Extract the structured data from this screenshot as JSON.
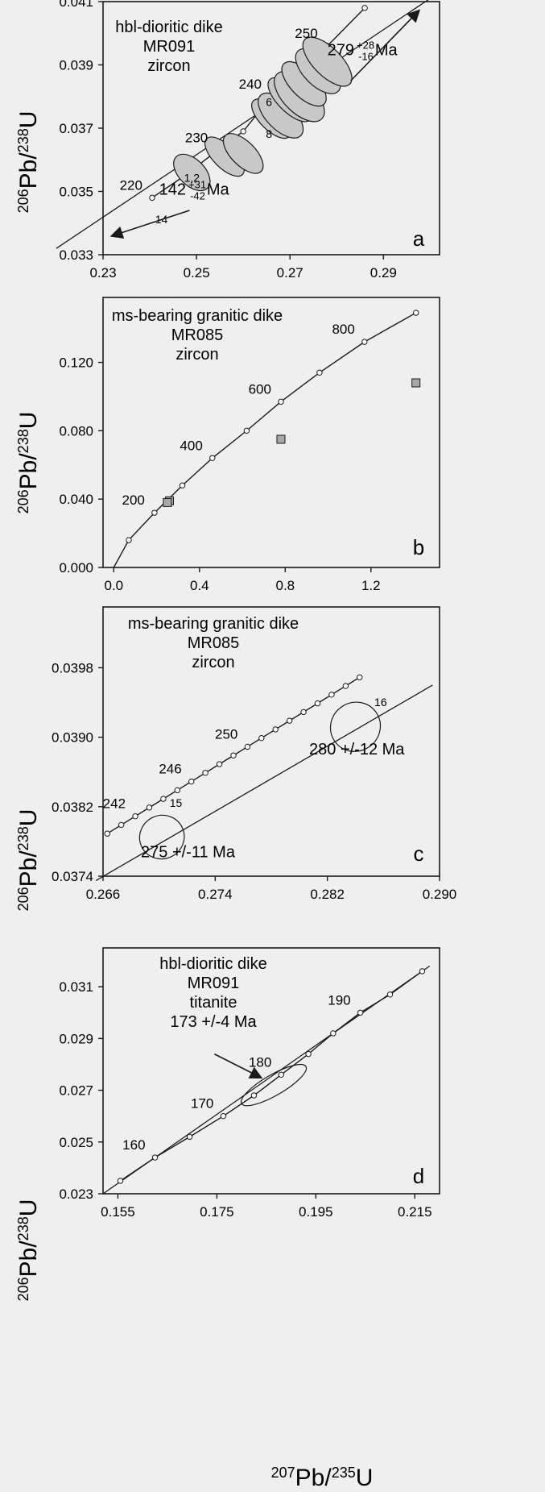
{
  "figure": {
    "x_axis_title": {
      "base": "Pb",
      "num_sup": "207",
      "den_sup": "235",
      "den": "U"
    }
  },
  "chart_data": [
    {
      "panel": "a",
      "type": "scatter",
      "title_lines": [
        "hbl-dioritic dike",
        "MR091",
        "zircon"
      ],
      "ylabel": {
        "base": "Pb",
        "num_sup": "206",
        "den_sup": "238",
        "den": "U"
      },
      "xlim": [
        0.23,
        0.302
      ],
      "ylim": [
        0.033,
        0.041
      ],
      "xticks": [
        0.23,
        0.25,
        0.27,
        0.29
      ],
      "xtick_labels": [
        "0.23",
        "0.25",
        "0.27",
        "0.29"
      ],
      "yticks": [
        0.033,
        0.035,
        0.037,
        0.039,
        0.041
      ],
      "ytick_labels": [
        "0.033",
        "0.035",
        "0.037",
        "0.039",
        "0.041"
      ],
      "concordia_points": [
        [
          0.2405,
          0.0348
        ],
        [
          0.2475,
          0.0355
        ],
        [
          0.2545,
          0.0363
        ],
        [
          0.26,
          0.0369
        ],
        [
          0.266,
          0.038
        ],
        [
          0.272,
          0.0387
        ],
        [
          0.278,
          0.0396
        ],
        [
          0.286,
          0.0408
        ]
      ],
      "concordia_labels": [
        {
          "text": "220",
          "x": 0.2405,
          "y": 0.0348
        },
        {
          "text": "230",
          "x": 0.2545,
          "y": 0.0363
        },
        {
          "text": "240",
          "x": 0.266,
          "y": 0.038
        },
        {
          "text": "250",
          "x": 0.278,
          "y": 0.0396
        }
      ],
      "discordia": [
        [
          0.22,
          0.0332
        ],
        [
          0.3,
          0.0411
        ]
      ],
      "ellipses": [
        {
          "cx": 0.249,
          "cy": 0.0356,
          "rx": 0.0028,
          "ry": 0.0007,
          "angle": -45,
          "fill": "#c8c8c8"
        },
        {
          "cx": 0.256,
          "cy": 0.0361,
          "rx": 0.0024,
          "ry": 0.0008,
          "angle": -45,
          "fill": "#c8c8c8"
        },
        {
          "cx": 0.26,
          "cy": 0.0362,
          "rx": 0.0026,
          "ry": 0.0008,
          "angle": -45,
          "fill": "#c8c8c8"
        },
        {
          "cx": 0.266,
          "cy": 0.0373,
          "rx": 0.0024,
          "ry": 0.0008,
          "angle": -45,
          "fill": "#c8c8c8"
        },
        {
          "cx": 0.268,
          "cy": 0.0374,
          "rx": 0.003,
          "ry": 0.0009,
          "angle": -45,
          "fill": "#c8c8c8"
        },
        {
          "cx": 0.27,
          "cy": 0.0379,
          "rx": 0.0026,
          "ry": 0.0009,
          "angle": -45,
          "fill": "#c8c8c8"
        },
        {
          "cx": 0.272,
          "cy": 0.038,
          "rx": 0.0034,
          "ry": 0.001,
          "angle": -45,
          "fill": "#c8c8c8"
        },
        {
          "cx": 0.273,
          "cy": 0.0384,
          "rx": 0.0028,
          "ry": 0.0009,
          "angle": -45,
          "fill": "#c8c8c8"
        },
        {
          "cx": 0.276,
          "cy": 0.0388,
          "rx": 0.003,
          "ry": 0.0009,
          "angle": -45,
          "fill": "#c8c8c8"
        },
        {
          "cx": 0.278,
          "cy": 0.0391,
          "rx": 0.003,
          "ry": 0.001,
          "angle": -45,
          "fill": "#c8c8c8"
        }
      ],
      "annotations": [
        {
          "text": "6",
          "x": 0.2655,
          "y": 0.0377
        },
        {
          "text": "8",
          "x": 0.2655,
          "y": 0.0367
        },
        {
          "text": "1,2",
          "x": 0.249,
          "y": 0.0353
        },
        {
          "text": "14",
          "x": 0.2425,
          "y": 0.034
        }
      ],
      "age_labels": [
        {
          "value": "279",
          "sup": "+28",
          "sub": "-16",
          "unit": "Ma",
          "x": 0.278,
          "y": 0.0393
        },
        {
          "value": "142",
          "sup": "+31",
          "sub": "-42",
          "unit": "Ma",
          "x": 0.242,
          "y": 0.0349
        }
      ],
      "arrows": [
        [
          [
            0.283,
            0.0385
          ],
          [
            0.2975,
            0.0407
          ]
        ],
        [
          [
            0.2485,
            0.0344
          ],
          [
            0.232,
            0.0336
          ]
        ]
      ],
      "panel_label": "a"
    },
    {
      "panel": "b",
      "type": "scatter",
      "title_lines": [
        "ms-bearing granitic dike",
        "MR085",
        "zircon"
      ],
      "ylabel": {
        "base": "Pb",
        "num_sup": "206",
        "den_sup": "238",
        "den": "U"
      },
      "xlim": [
        -0.05,
        1.52
      ],
      "ylim": [
        0,
        0.158
      ],
      "xticks": [
        0,
        0.4,
        0.8,
        1.2
      ],
      "xtick_labels": [
        "0.0",
        "0.4",
        "0.8",
        "1.2"
      ],
      "yticks": [
        0,
        0.04,
        0.08,
        0.12
      ],
      "ytick_labels": [
        "0.000",
        "0.040",
        "0.080",
        "0.120"
      ],
      "concordia_points": [
        [
          0.07,
          0.016
        ],
        [
          0.19,
          0.032
        ],
        [
          0.32,
          0.048
        ],
        [
          0.46,
          0.064
        ],
        [
          0.62,
          0.08
        ],
        [
          0.78,
          0.097
        ],
        [
          0.96,
          0.114
        ],
        [
          1.17,
          0.132
        ],
        [
          1.41,
          0.149
        ]
      ],
      "concordia_labels": [
        {
          "text": "200",
          "x": 0.19,
          "y": 0.032
        },
        {
          "text": "400",
          "x": 0.46,
          "y": 0.064
        },
        {
          "text": "600",
          "x": 0.78,
          "y": 0.097
        },
        {
          "text": "800",
          "x": 1.17,
          "y": 0.132
        }
      ],
      "squares": [
        [
          0.26,
          0.039
        ],
        [
          0.25,
          0.038
        ],
        [
          0.78,
          0.075
        ],
        [
          1.41,
          0.108
        ]
      ],
      "panel_label": "b"
    },
    {
      "panel": "c",
      "type": "scatter",
      "title_lines": [
        "ms-bearing granitic dike",
        "MR085",
        "zircon"
      ],
      "ylabel": {
        "base": "Pb",
        "num_sup": "206",
        "den_sup": "238",
        "den": "U"
      },
      "xlim": [
        0.266,
        0.29
      ],
      "ylim": [
        0.0374,
        0.0405
      ],
      "xticks": [
        0.266,
        0.274,
        0.282,
        0.29
      ],
      "xtick_labels": [
        "0.266",
        "0.274",
        "0.282",
        "0.290"
      ],
      "yticks": [
        0.0374,
        0.0382,
        0.039,
        0.0398
      ],
      "ytick_labels": [
        "0.0374",
        "0.0382",
        "0.0390",
        "0.0398"
      ],
      "concordia_points": [
        [
          0.2663,
          0.03789
        ],
        [
          0.2673,
          0.03799
        ],
        [
          0.2683,
          0.03809
        ],
        [
          0.2693,
          0.03819
        ],
        [
          0.2703,
          0.03829
        ],
        [
          0.2713,
          0.03839
        ],
        [
          0.2723,
          0.03849
        ],
        [
          0.2733,
          0.03859
        ],
        [
          0.2743,
          0.03869
        ],
        [
          0.2753,
          0.03879
        ],
        [
          0.2763,
          0.03889
        ],
        [
          0.2773,
          0.03899
        ],
        [
          0.2783,
          0.03909
        ],
        [
          0.2793,
          0.03919
        ],
        [
          0.2803,
          0.03929
        ],
        [
          0.2813,
          0.03939
        ],
        [
          0.2823,
          0.03949
        ],
        [
          0.2833,
          0.03959
        ],
        [
          0.2843,
          0.03969
        ]
      ],
      "concordia_labels": [
        {
          "text": "242",
          "x": 0.2683,
          "y": 0.03809
        },
        {
          "text": "246",
          "x": 0.2723,
          "y": 0.03849
        },
        {
          "text": "250",
          "x": 0.2763,
          "y": 0.03889
        }
      ],
      "discordia": [
        [
          0.2655,
          0.03735
        ],
        [
          0.2895,
          0.0396
        ]
      ],
      "ellipses": [
        {
          "cx": 0.2702,
          "cy": 0.03785,
          "rx": 0.0016,
          "ry": 0.00025,
          "angle": -25,
          "fill": "none"
        },
        {
          "cx": 0.284,
          "cy": 0.03912,
          "rx": 0.0018,
          "ry": 0.00028,
          "angle": -35,
          "fill": "none"
        }
      ],
      "annotations": [
        {
          "text": "15",
          "x": 0.2712,
          "y": 0.0382
        },
        {
          "text": "16",
          "x": 0.2858,
          "y": 0.03936
        }
      ],
      "age_labels": [
        {
          "value": "275 +/-11 Ma",
          "x": 0.2687,
          "y": 0.03762
        },
        {
          "value": "280 +/-12 Ma",
          "x": 0.2807,
          "y": 0.0388
        }
      ],
      "panel_label": "c"
    },
    {
      "panel": "d",
      "type": "scatter",
      "title_lines": [
        "hbl-dioritic dike",
        "MR091",
        "titanite",
        "173 +/-4 Ma"
      ],
      "ylabel": {
        "base": "Pb",
        "num_sup": "206",
        "den_sup": "238",
        "den": "U"
      },
      "xlim": [
        0.152,
        0.22
      ],
      "ylim": [
        0.023,
        0.0325
      ],
      "xticks": [
        0.155,
        0.175,
        0.195,
        0.215
      ],
      "xtick_labels": [
        "0.155",
        "0.175",
        "0.195",
        "0.215"
      ],
      "yticks": [
        0.023,
        0.025,
        0.027,
        0.029,
        0.031
      ],
      "ytick_labels": [
        "0.023",
        "0.025",
        "0.027",
        "0.029",
        "0.031"
      ],
      "concordia_points": [
        [
          0.1555,
          0.0235
        ],
        [
          0.1625,
          0.0244
        ],
        [
          0.1695,
          0.0252
        ],
        [
          0.1763,
          0.026
        ],
        [
          0.1825,
          0.0268
        ],
        [
          0.188,
          0.0276
        ],
        [
          0.1935,
          0.0284
        ],
        [
          0.1985,
          0.0292
        ],
        [
          0.204,
          0.03
        ],
        [
          0.21,
          0.0307
        ],
        [
          0.2165,
          0.0316
        ]
      ],
      "concordia_labels": [
        {
          "text": "160",
          "x": 0.1625,
          "y": 0.0244
        },
        {
          "text": "170",
          "x": 0.1763,
          "y": 0.026
        },
        {
          "text": "180",
          "x": 0.188,
          "y": 0.0276
        },
        {
          "text": "190",
          "x": 0.204,
          "y": 0.03
        }
      ],
      "discordia": [
        [
          0.152,
          0.023
        ],
        [
          0.218,
          0.0318
        ]
      ],
      "ellipses": [
        {
          "cx": 0.1865,
          "cy": 0.0272,
          "rx": 0.0075,
          "ry": 0.0004,
          "angle": -30,
          "fill": "none"
        }
      ],
      "arrows": [
        [
          [
            0.1745,
            0.0284
          ],
          [
            0.1838,
            0.0275
          ]
        ]
      ],
      "panel_label": "d"
    }
  ]
}
